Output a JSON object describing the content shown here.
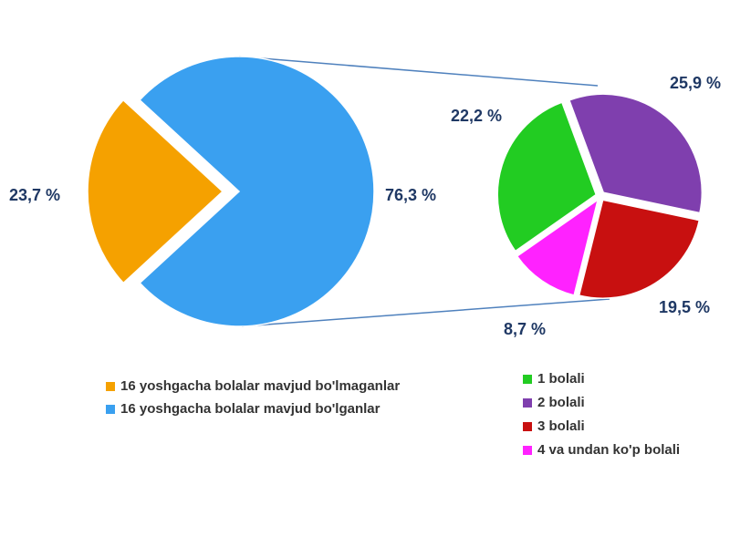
{
  "chart_data": [
    {
      "type": "pie",
      "categories": [
        "16 yoshgacha bolalar mavjud bo'lmaganlar",
        "16 yoshgacha bolalar mavjud bo'lganlar"
      ],
      "values": [
        23.7,
        76.3
      ],
      "value_labels": [
        "23,7 %",
        "76,3 %"
      ],
      "colors": [
        "#f5a100",
        "#3aa0f0"
      ]
    },
    {
      "type": "pie",
      "categories": [
        "1 bolali",
        "2 bolali",
        "3 bolali",
        "4 va undan ko'p bolali"
      ],
      "values": [
        22.2,
        25.9,
        19.5,
        8.7
      ],
      "value_labels": [
        "22,2 %",
        "25,9 %",
        "19,5 %",
        "8,7 %"
      ],
      "colors": [
        "#22cc22",
        "#7f3fae",
        "#c81010",
        "#ff22ff"
      ]
    }
  ]
}
